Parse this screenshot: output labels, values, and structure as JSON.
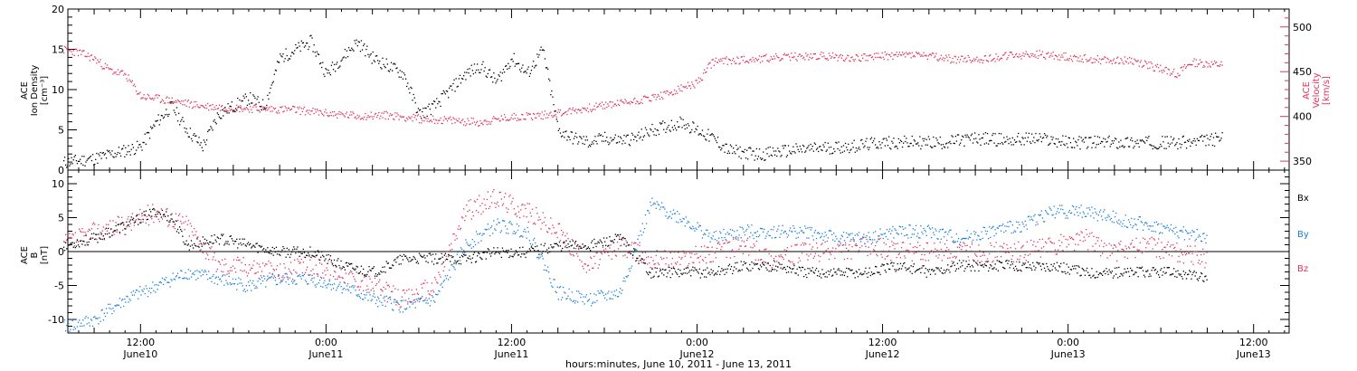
{
  "colors": {
    "black": "#000000",
    "red": "#e0345e",
    "blue": "#1a7fe0",
    "frame": "#000000"
  },
  "chart_data": [
    {
      "type": "scatter",
      "panel": "top",
      "ylabel_left": [
        "ACE",
        "Ion Density",
        "[cm⁻³]"
      ],
      "ylabel_right": [
        "ACE",
        "Velocity",
        "[km/s]"
      ],
      "ylim_left": [
        0,
        20
      ],
      "ylim_right": [
        340,
        520
      ],
      "left_ticks": [
        "0",
        "5",
        "10",
        "15",
        "20"
      ],
      "right_ticks": [
        "350",
        "400",
        "450",
        "500"
      ],
      "series": [
        {
          "axis": "left",
          "color": "black",
          "points": [
            [
              7,
              1
            ],
            [
              9,
              1.5
            ],
            [
              10,
              2
            ],
            [
              11,
              2.5
            ],
            [
              12,
              3
            ],
            [
              13,
              6
            ],
            [
              14,
              8
            ],
            [
              15,
              5
            ],
            [
              16,
              3
            ],
            [
              17,
              7
            ],
            [
              18,
              8
            ],
            [
              19,
              9
            ],
            [
              20,
              8
            ],
            [
              21,
              14
            ],
            [
              22,
              15
            ],
            [
              23,
              16
            ],
            [
              24,
              12
            ],
            [
              25,
              14
            ],
            [
              26,
              16
            ],
            [
              27,
              14
            ],
            [
              28,
              13
            ],
            [
              29,
              12
            ],
            [
              30,
              7
            ],
            [
              31,
              8
            ],
            [
              32,
              10
            ],
            [
              33,
              12
            ],
            [
              34,
              13
            ],
            [
              35,
              11
            ],
            [
              36,
              14
            ],
            [
              37,
              12
            ],
            [
              38,
              15
            ],
            [
              39,
              5
            ],
            [
              40,
              4
            ],
            [
              41,
              3.5
            ],
            [
              42,
              4
            ],
            [
              43,
              3.8
            ],
            [
              44,
              4
            ],
            [
              45,
              5
            ],
            [
              46,
              5.5
            ],
            [
              47,
              6
            ],
            [
              48,
              5
            ],
            [
              49,
              4
            ],
            [
              50,
              2.5
            ],
            [
              52,
              2
            ],
            [
              54,
              2.5
            ],
            [
              56,
              2.8
            ],
            [
              58,
              3
            ],
            [
              60,
              3.5
            ],
            [
              62,
              3.5
            ],
            [
              64,
              3.5
            ],
            [
              66,
              4
            ],
            [
              68,
              3.8
            ],
            [
              70,
              4
            ],
            [
              72,
              3.5
            ],
            [
              74,
              3.5
            ],
            [
              76,
              3.5
            ],
            [
              78,
              3.5
            ],
            [
              80,
              3.5
            ],
            [
              82,
              4
            ]
          ]
        },
        {
          "axis": "right",
          "color": "red",
          "points": [
            [
              7,
              475
            ],
            [
              8,
              472
            ],
            [
              9,
              465
            ],
            [
              10,
              452
            ],
            [
              11,
              447
            ],
            [
              12,
              423
            ],
            [
              14,
              418
            ],
            [
              16,
              412
            ],
            [
              18,
              410
            ],
            [
              20,
              409
            ],
            [
              22,
              408
            ],
            [
              24,
              404
            ],
            [
              26,
              401
            ],
            [
              28,
              402
            ],
            [
              30,
              398
            ],
            [
              32,
              396
            ],
            [
              34,
              394
            ],
            [
              36,
              400
            ],
            [
              38,
              402
            ],
            [
              40,
              407
            ],
            [
              42,
              413
            ],
            [
              44,
              418
            ],
            [
              46,
              425
            ],
            [
              47,
              432
            ],
            [
              48,
              438
            ],
            [
              49,
              462
            ],
            [
              50,
              463
            ],
            [
              52,
              465
            ],
            [
              54,
              467
            ],
            [
              56,
              468
            ],
            [
              58,
              466
            ],
            [
              60,
              468
            ],
            [
              62,
              470
            ],
            [
              64,
              465
            ],
            [
              66,
              464
            ],
            [
              68,
              468
            ],
            [
              70,
              470
            ],
            [
              72,
              467
            ],
            [
              74,
              464
            ],
            [
              76,
              463
            ],
            [
              78,
              454
            ],
            [
              79,
              448
            ],
            [
              80,
              461
            ],
            [
              82,
              458
            ]
          ]
        }
      ]
    },
    {
      "type": "scatter",
      "panel": "bottom",
      "ylabel": [
        "ACE",
        "B",
        "[nT]"
      ],
      "ylim": [
        -12,
        12
      ],
      "yticks": [
        "-10",
        "-5",
        "0",
        "5",
        "10"
      ],
      "legend": [
        "Bx",
        "By",
        "Bz"
      ],
      "legend_colors": [
        "black",
        "blue",
        "red"
      ],
      "series": [
        {
          "name": "Bx",
          "color": "black",
          "points": [
            [
              7,
              1
            ],
            [
              9,
              2
            ],
            [
              11,
              4
            ],
            [
              13,
              6
            ],
            [
              14,
              5
            ],
            [
              15,
              1
            ],
            [
              17,
              2
            ],
            [
              19,
              1
            ],
            [
              21,
              0
            ],
            [
              23,
              0
            ],
            [
              25,
              -2
            ],
            [
              27,
              -3
            ],
            [
              29,
              -1
            ],
            [
              31,
              -1
            ],
            [
              33,
              -1
            ],
            [
              35,
              0
            ],
            [
              37,
              0
            ],
            [
              39,
              1
            ],
            [
              41,
              1
            ],
            [
              43,
              2
            ],
            [
              45,
              -3
            ],
            [
              47,
              -3
            ],
            [
              49,
              -3
            ],
            [
              51,
              -2
            ],
            [
              53,
              -2
            ],
            [
              55,
              -3
            ],
            [
              57,
              -3
            ],
            [
              59,
              -3
            ],
            [
              61,
              -2
            ],
            [
              63,
              -3
            ],
            [
              65,
              -2
            ],
            [
              67,
              -2
            ],
            [
              69,
              -2
            ],
            [
              71,
              -2
            ],
            [
              73,
              -3
            ],
            [
              75,
              -3
            ],
            [
              77,
              -3
            ],
            [
              79,
              -3
            ],
            [
              81,
              -4
            ]
          ]
        },
        {
          "name": "By",
          "color": "blue",
          "points": [
            [
              7,
              -11
            ],
            [
              9,
              -10
            ],
            [
              11,
              -7
            ],
            [
              13,
              -5
            ],
            [
              15,
              -3
            ],
            [
              17,
              -4
            ],
            [
              19,
              -5
            ],
            [
              21,
              -4
            ],
            [
              23,
              -4
            ],
            [
              25,
              -5
            ],
            [
              27,
              -7
            ],
            [
              29,
              -8
            ],
            [
              31,
              -7
            ],
            [
              33,
              1
            ],
            [
              35,
              4
            ],
            [
              37,
              3
            ],
            [
              39,
              -6
            ],
            [
              41,
              -7
            ],
            [
              43,
              -6
            ],
            [
              45,
              7
            ],
            [
              47,
              5
            ],
            [
              49,
              2
            ],
            [
              51,
              3
            ],
            [
              53,
              3
            ],
            [
              55,
              3
            ],
            [
              57,
              2
            ],
            [
              59,
              2
            ],
            [
              61,
              3
            ],
            [
              63,
              3
            ],
            [
              65,
              2
            ],
            [
              67,
              3
            ],
            [
              69,
              4
            ],
            [
              71,
              6
            ],
            [
              73,
              6
            ],
            [
              75,
              5
            ],
            [
              77,
              4
            ],
            [
              79,
              3
            ],
            [
              81,
              2
            ]
          ]
        },
        {
          "name": "Bz",
          "color": "red",
          "points": [
            [
              7,
              1
            ],
            [
              9,
              3
            ],
            [
              11,
              4
            ],
            [
              13,
              6
            ],
            [
              15,
              4
            ],
            [
              17,
              -2
            ],
            [
              19,
              -2
            ],
            [
              21,
              -3
            ],
            [
              23,
              -2
            ],
            [
              25,
              -3
            ],
            [
              27,
              -5
            ],
            [
              29,
              -7
            ],
            [
              31,
              -5
            ],
            [
              33,
              6
            ],
            [
              35,
              8
            ],
            [
              37,
              6
            ],
            [
              39,
              3
            ],
            [
              41,
              -2
            ],
            [
              43,
              1
            ],
            [
              45,
              -1
            ],
            [
              47,
              -1
            ],
            [
              49,
              0
            ],
            [
              51,
              1
            ],
            [
              53,
              -1
            ],
            [
              55,
              0
            ],
            [
              57,
              0
            ],
            [
              59,
              1
            ],
            [
              61,
              0
            ],
            [
              63,
              0
            ],
            [
              65,
              0
            ],
            [
              67,
              0
            ],
            [
              69,
              0
            ],
            [
              71,
              1
            ],
            [
              73,
              2
            ],
            [
              75,
              0
            ],
            [
              77,
              1
            ],
            [
              79,
              0
            ],
            [
              81,
              -1
            ]
          ]
        }
      ]
    }
  ],
  "x_axis": {
    "xlim_hours": [
      7.3,
      86.3
    ],
    "ticks": [
      {
        "h": 12,
        "time": "12:00",
        "date": "June10"
      },
      {
        "h": 24,
        "time": "0:00",
        "date": "June11"
      },
      {
        "h": 36,
        "time": "12:00",
        "date": "June11"
      },
      {
        "h": 48,
        "time": "0:00",
        "date": "June12"
      },
      {
        "h": 60,
        "time": "12:00",
        "date": "June12"
      },
      {
        "h": 72,
        "time": "0:00",
        "date": "June13"
      },
      {
        "h": 84,
        "time": "12:00",
        "date": "June13"
      }
    ],
    "title": "hours:minutes, June 10, 2011 - June 13, 2011"
  }
}
